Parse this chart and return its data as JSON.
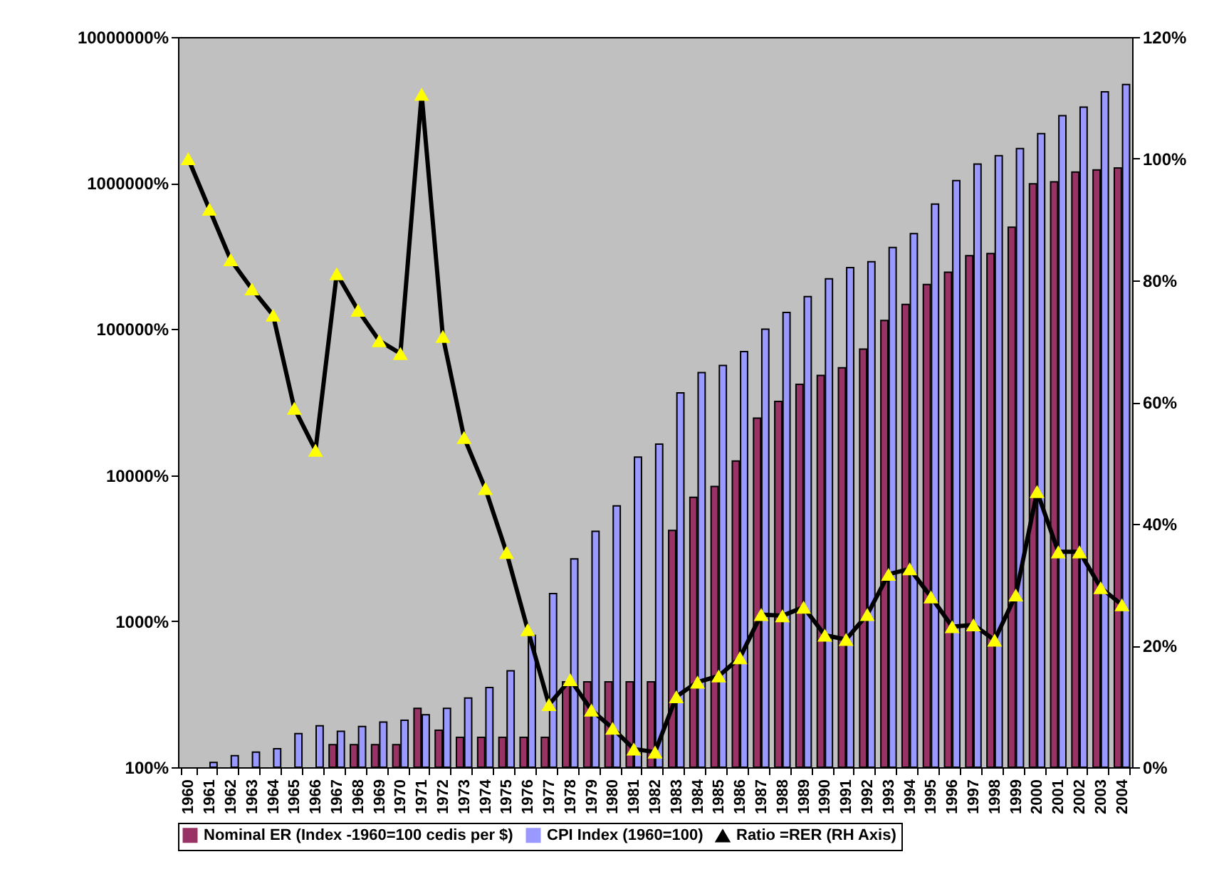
{
  "chart_data": {
    "type": "bar",
    "categories": [
      "1960",
      "1961",
      "1962",
      "1963",
      "1964",
      "1965",
      "1966",
      "1967",
      "1968",
      "1969",
      "1970",
      "1971",
      "1972",
      "1973",
      "1974",
      "1975",
      "1976",
      "1977",
      "1978",
      "1979",
      "1980",
      "1981",
      "1982",
      "1983",
      "1984",
      "1985",
      "1986",
      "1987",
      "1988",
      "1989",
      "1990",
      "1991",
      "1992",
      "1993",
      "1994",
      "1995",
      "1996",
      "1997",
      "1998",
      "1999",
      "2000",
      "2001",
      "2002",
      "2003",
      "2004"
    ],
    "series": [
      {
        "name": "Nominal ER (Index -1960=100 cedis per $)",
        "color": "#993366",
        "values": [
          100,
          100,
          100,
          100,
          100,
          100,
          100,
          143,
          143,
          143,
          143,
          253,
          179,
          160,
          160,
          160,
          160,
          160,
          384,
          384,
          384,
          384,
          384,
          4180,
          7060,
          8370,
          12500,
          24600,
          32000,
          41900,
          48200,
          54400,
          73000,
          114700,
          147700,
          202000,
          245000,
          318000,
          329000,
          499000,
          988000,
          1020000,
          1190000,
          1230000,
          1270000
        ]
      },
      {
        "name": "CPI Index (1960=100)",
        "color": "#9999ff",
        "values": [
          100,
          108,
          120,
          127,
          134,
          170,
          192,
          176,
          190,
          204,
          210,
          229,
          253,
          298,
          351,
          457,
          800,
          1545,
          2670,
          4120,
          6170,
          13300,
          16300,
          36600,
          50400,
          56400,
          70100,
          99800,
          130000,
          167000,
          221000,
          264000,
          289000,
          362000,
          451000,
          718000,
          1040000,
          1350000,
          1540000,
          1720000,
          2180000,
          2890000,
          3310000,
          4220000,
          4730000
        ]
      },
      {
        "name": "Ratio =RER (RH Axis)",
        "type": "line",
        "axis": "y2",
        "color": "#000000",
        "values": [
          100,
          91.7,
          83.4,
          78.6,
          74.3,
          59.0,
          52.1,
          81.1,
          75.1,
          70.1,
          68.0,
          110.6,
          70.8,
          54.2,
          45.8,
          35.3,
          22.6,
          10.3,
          14.4,
          9.4,
          6.4,
          3.0,
          2.5,
          11.6,
          14.0,
          15.0,
          18.0,
          25.1,
          24.9,
          26.3,
          21.7,
          21.0,
          25.1,
          31.7,
          32.6,
          28.0,
          23.1,
          23.4,
          20.9,
          28.3,
          45.3,
          35.4,
          35.4,
          29.5,
          26.7
        ]
      }
    ],
    "log": "y",
    "ylim": [
      100,
      10000000
    ],
    "yticks": [
      {
        "value": 100,
        "label": "100%"
      },
      {
        "value": 1000,
        "label": "1000%"
      },
      {
        "value": 10000,
        "label": "10000%"
      },
      {
        "value": 100000,
        "label": "100000%"
      },
      {
        "value": 1000000,
        "label": "1000000%"
      },
      {
        "value": 10000000,
        "label": "10000000%"
      }
    ],
    "y2lim": [
      0,
      120
    ],
    "y2ticks": [
      {
        "value": 0,
        "label": "0%"
      },
      {
        "value": 20,
        "label": "20%"
      },
      {
        "value": 40,
        "label": "40%"
      },
      {
        "value": 60,
        "label": "60%"
      },
      {
        "value": 80,
        "label": "80%"
      },
      {
        "value": 100,
        "label": "100%"
      },
      {
        "value": 120,
        "label": "120%"
      }
    ],
    "marker": "triangle",
    "legend": "bottom"
  }
}
